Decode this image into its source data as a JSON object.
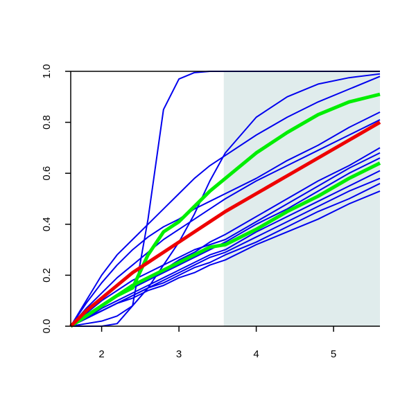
{
  "chart_data": {
    "type": "line",
    "x": [
      1.6,
      1.8,
      2.0,
      2.2,
      2.4,
      2.6,
      2.8,
      3.0,
      3.2,
      3.4,
      3.6,
      4.0,
      4.4,
      4.8,
      5.2,
      5.6
    ],
    "series": [
      {
        "color": "#0000ee",
        "values": [
          0,
          0,
          0,
          0.01,
          0.08,
          0.42,
          0.85,
          0.97,
          0.995,
          1,
          1,
          1,
          1,
          1,
          1,
          1
        ]
      },
      {
        "color": "#0000ee",
        "values": [
          0,
          0.01,
          0.02,
          0.04,
          0.08,
          0.15,
          0.24,
          0.33,
          0.44,
          0.57,
          0.68,
          0.82,
          0.9,
          0.95,
          0.975,
          0.99
        ]
      },
      {
        "color": "#0000ee",
        "values": [
          0,
          0.1,
          0.2,
          0.28,
          0.34,
          0.4,
          0.46,
          0.52,
          0.58,
          0.63,
          0.67,
          0.75,
          0.82,
          0.88,
          0.93,
          0.98
        ]
      },
      {
        "color": "#0000ee",
        "values": [
          0,
          0.09,
          0.17,
          0.24,
          0.3,
          0.35,
          0.39,
          0.42,
          0.46,
          0.49,
          0.52,
          0.58,
          0.65,
          0.71,
          0.78,
          0.84
        ]
      },
      {
        "color": "#0000ee",
        "values": [
          0,
          0.07,
          0.13,
          0.19,
          0.24,
          0.29,
          0.34,
          0.38,
          0.42,
          0.46,
          0.5,
          0.57,
          0.63,
          0.69,
          0.75,
          0.81
        ]
      },
      {
        "color": "#0000ee",
        "values": [
          0,
          0.04,
          0.08,
          0.12,
          0.15,
          0.19,
          0.22,
          0.26,
          0.29,
          0.33,
          0.36,
          0.43,
          0.5,
          0.57,
          0.63,
          0.7
        ]
      },
      {
        "color": "#0000ee",
        "values": [
          0,
          0.05,
          0.1,
          0.14,
          0.18,
          0.21,
          0.24,
          0.27,
          0.3,
          0.32,
          0.34,
          0.41,
          0.48,
          0.55,
          0.62,
          0.68
        ]
      },
      {
        "color": "#0000ee",
        "values": [
          0,
          0.04,
          0.08,
          0.12,
          0.15,
          0.18,
          0.21,
          0.24,
          0.27,
          0.3,
          0.33,
          0.4,
          0.46,
          0.53,
          0.6,
          0.66
        ]
      },
      {
        "color": "#0000ee",
        "values": [
          0,
          0.03,
          0.07,
          0.1,
          0.13,
          0.16,
          0.19,
          0.22,
          0.25,
          0.28,
          0.3,
          0.37,
          0.43,
          0.49,
          0.55,
          0.61
        ]
      },
      {
        "color": "#0000ee",
        "values": [
          0,
          0.03,
          0.06,
          0.09,
          0.12,
          0.15,
          0.18,
          0.21,
          0.24,
          0.27,
          0.29,
          0.35,
          0.41,
          0.47,
          0.53,
          0.58
        ]
      },
      {
        "color": "#0000ee",
        "values": [
          0,
          0.03,
          0.06,
          0.09,
          0.12,
          0.15,
          0.17,
          0.2,
          0.23,
          0.25,
          0.28,
          0.33,
          0.39,
          0.45,
          0.5,
          0.56
        ]
      },
      {
        "color": "#0000ee",
        "values": [
          0,
          0.03,
          0.06,
          0.09,
          0.11,
          0.14,
          0.16,
          0.19,
          0.21,
          0.24,
          0.26,
          0.32,
          0.37,
          0.42,
          0.48,
          0.53
        ]
      },
      {
        "color": "#00ee00",
        "emphasis": true,
        "values": [
          0,
          0.04,
          0.08,
          0.12,
          0.16,
          0.19,
          0.22,
          0.25,
          0.28,
          0.31,
          0.32,
          0.38,
          0.45,
          0.51,
          0.58,
          0.64
        ]
      },
      {
        "color": "#00ee00",
        "emphasis": true,
        "values": [
          0,
          0.04,
          0.08,
          0.12,
          0.15,
          0.28,
          0.37,
          0.41,
          0.47,
          0.53,
          0.58,
          0.68,
          0.76,
          0.83,
          0.88,
          0.91
        ]
      },
      {
        "color": "#ee0000",
        "emphasis": true,
        "values": [
          0,
          0.06,
          0.11,
          0.16,
          0.21,
          0.25,
          0.29,
          0.33,
          0.37,
          0.41,
          0.45,
          0.52,
          0.59,
          0.66,
          0.73,
          0.8
        ]
      }
    ],
    "xlim": [
      1.6,
      5.6
    ],
    "ylim": [
      0,
      1
    ],
    "xticks": [
      2,
      3,
      4,
      5
    ],
    "yticks": [
      {
        "value": 0,
        "label": "0.0"
      },
      0.2,
      0.4,
      0.6,
      0.8,
      {
        "value": 1,
        "label": "1.0"
      }
    ],
    "shade_x": [
      3.58,
      5.6
    ],
    "shade_color": "#e0ecec"
  }
}
